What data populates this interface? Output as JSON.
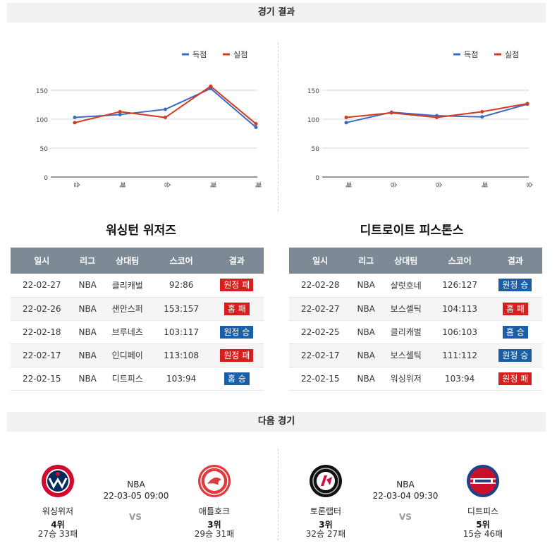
{
  "sections": {
    "results_title": "경기 결과",
    "next_title": "다음 경기"
  },
  "legend": {
    "scored": "득점",
    "conceded": "실점"
  },
  "colors": {
    "scored": "#3b69c8",
    "conceded": "#d33b1f",
    "win": "#1a5fa6",
    "loss": "#d4201f"
  },
  "chart_data": [
    {
      "type": "line",
      "categories": [
        "승",
        "패",
        "승",
        "패",
        "패"
      ],
      "series": [
        {
          "name": "득점",
          "values": [
            103,
            108,
            117,
            153,
            86
          ]
        },
        {
          "name": "실점",
          "values": [
            94,
            113,
            103,
            157,
            92
          ]
        }
      ],
      "yticks": [
        0,
        50,
        100,
        150
      ],
      "ylim": [
        0,
        160
      ],
      "legend": "top-right",
      "grid": true
    },
    {
      "type": "line",
      "categories": [
        "패",
        "승",
        "승",
        "패",
        "승"
      ],
      "series": [
        {
          "name": "득점",
          "values": [
            94,
            112,
            106,
            104,
            126
          ]
        },
        {
          "name": "실점",
          "values": [
            103,
            111,
            103,
            113,
            127
          ]
        }
      ],
      "yticks": [
        0,
        50,
        100,
        150
      ],
      "ylim": [
        0,
        160
      ],
      "legend": "top-right",
      "grid": true
    }
  ],
  "headers": [
    "일시",
    "리그",
    "상대팀",
    "스코어",
    "결과"
  ],
  "teams": [
    {
      "name": "워싱턴 위저즈",
      "games": [
        {
          "date": "22-02-27",
          "league": "NBA",
          "opponent": "클리캐벌",
          "score": "92:86",
          "result": "원정 패",
          "outcome": "loss"
        },
        {
          "date": "22-02-26",
          "league": "NBA",
          "opponent": "샌안스퍼",
          "score": "153:157",
          "result": "홈 패",
          "outcome": "loss"
        },
        {
          "date": "22-02-18",
          "league": "NBA",
          "opponent": "브루네츠",
          "score": "103:117",
          "result": "원정 승",
          "outcome": "win"
        },
        {
          "date": "22-02-17",
          "league": "NBA",
          "opponent": "인디페이",
          "score": "113:108",
          "result": "원정 패",
          "outcome": "loss"
        },
        {
          "date": "22-02-15",
          "league": "NBA",
          "opponent": "디트피스",
          "score": "103:94",
          "result": "홈 승",
          "outcome": "win"
        }
      ]
    },
    {
      "name": "디트로이트 피스톤스",
      "games": [
        {
          "date": "22-02-28",
          "league": "NBA",
          "opponent": "샬럿호네",
          "score": "126:127",
          "result": "원정 승",
          "outcome": "win"
        },
        {
          "date": "22-02-27",
          "league": "NBA",
          "opponent": "보스셀틱",
          "score": "104:113",
          "result": "홈 패",
          "outcome": "loss"
        },
        {
          "date": "22-02-25",
          "league": "NBA",
          "opponent": "클리캐벌",
          "score": "106:103",
          "result": "홈 승",
          "outcome": "win"
        },
        {
          "date": "22-02-17",
          "league": "NBA",
          "opponent": "보스셀틱",
          "score": "111:112",
          "result": "원정 승",
          "outcome": "win"
        },
        {
          "date": "22-02-15",
          "league": "NBA",
          "opponent": "워싱위저",
          "score": "103:94",
          "result": "원정 패",
          "outcome": "loss"
        }
      ]
    }
  ],
  "next_games": [
    {
      "league": "NBA",
      "datetime": "22-03-05 09:00",
      "vs": "VS",
      "home": {
        "name": "워싱위저",
        "rank": "4위",
        "record": "27승 33패",
        "logo_text": "WASHINGTON WIZARDS",
        "logo_icon": "wizards-logo-icon"
      },
      "away": {
        "name": "애틀호크",
        "rank": "3위",
        "record": "29승 31패",
        "logo_text": "ATLANTA HAWKS",
        "logo_icon": "hawks-logo-icon"
      }
    },
    {
      "league": "NBA",
      "datetime": "22-03-04 09:30",
      "vs": "VS",
      "home": {
        "name": "토론랩터",
        "rank": "3위",
        "record": "32승 27패",
        "logo_text": "TORONTO RAPTORS",
        "logo_icon": "raptors-logo-icon"
      },
      "away": {
        "name": "디트피스",
        "rank": "5위",
        "record": "15승 46패",
        "logo_text": "DETROIT PISTONS",
        "logo_icon": "pistons-logo-icon"
      }
    }
  ]
}
